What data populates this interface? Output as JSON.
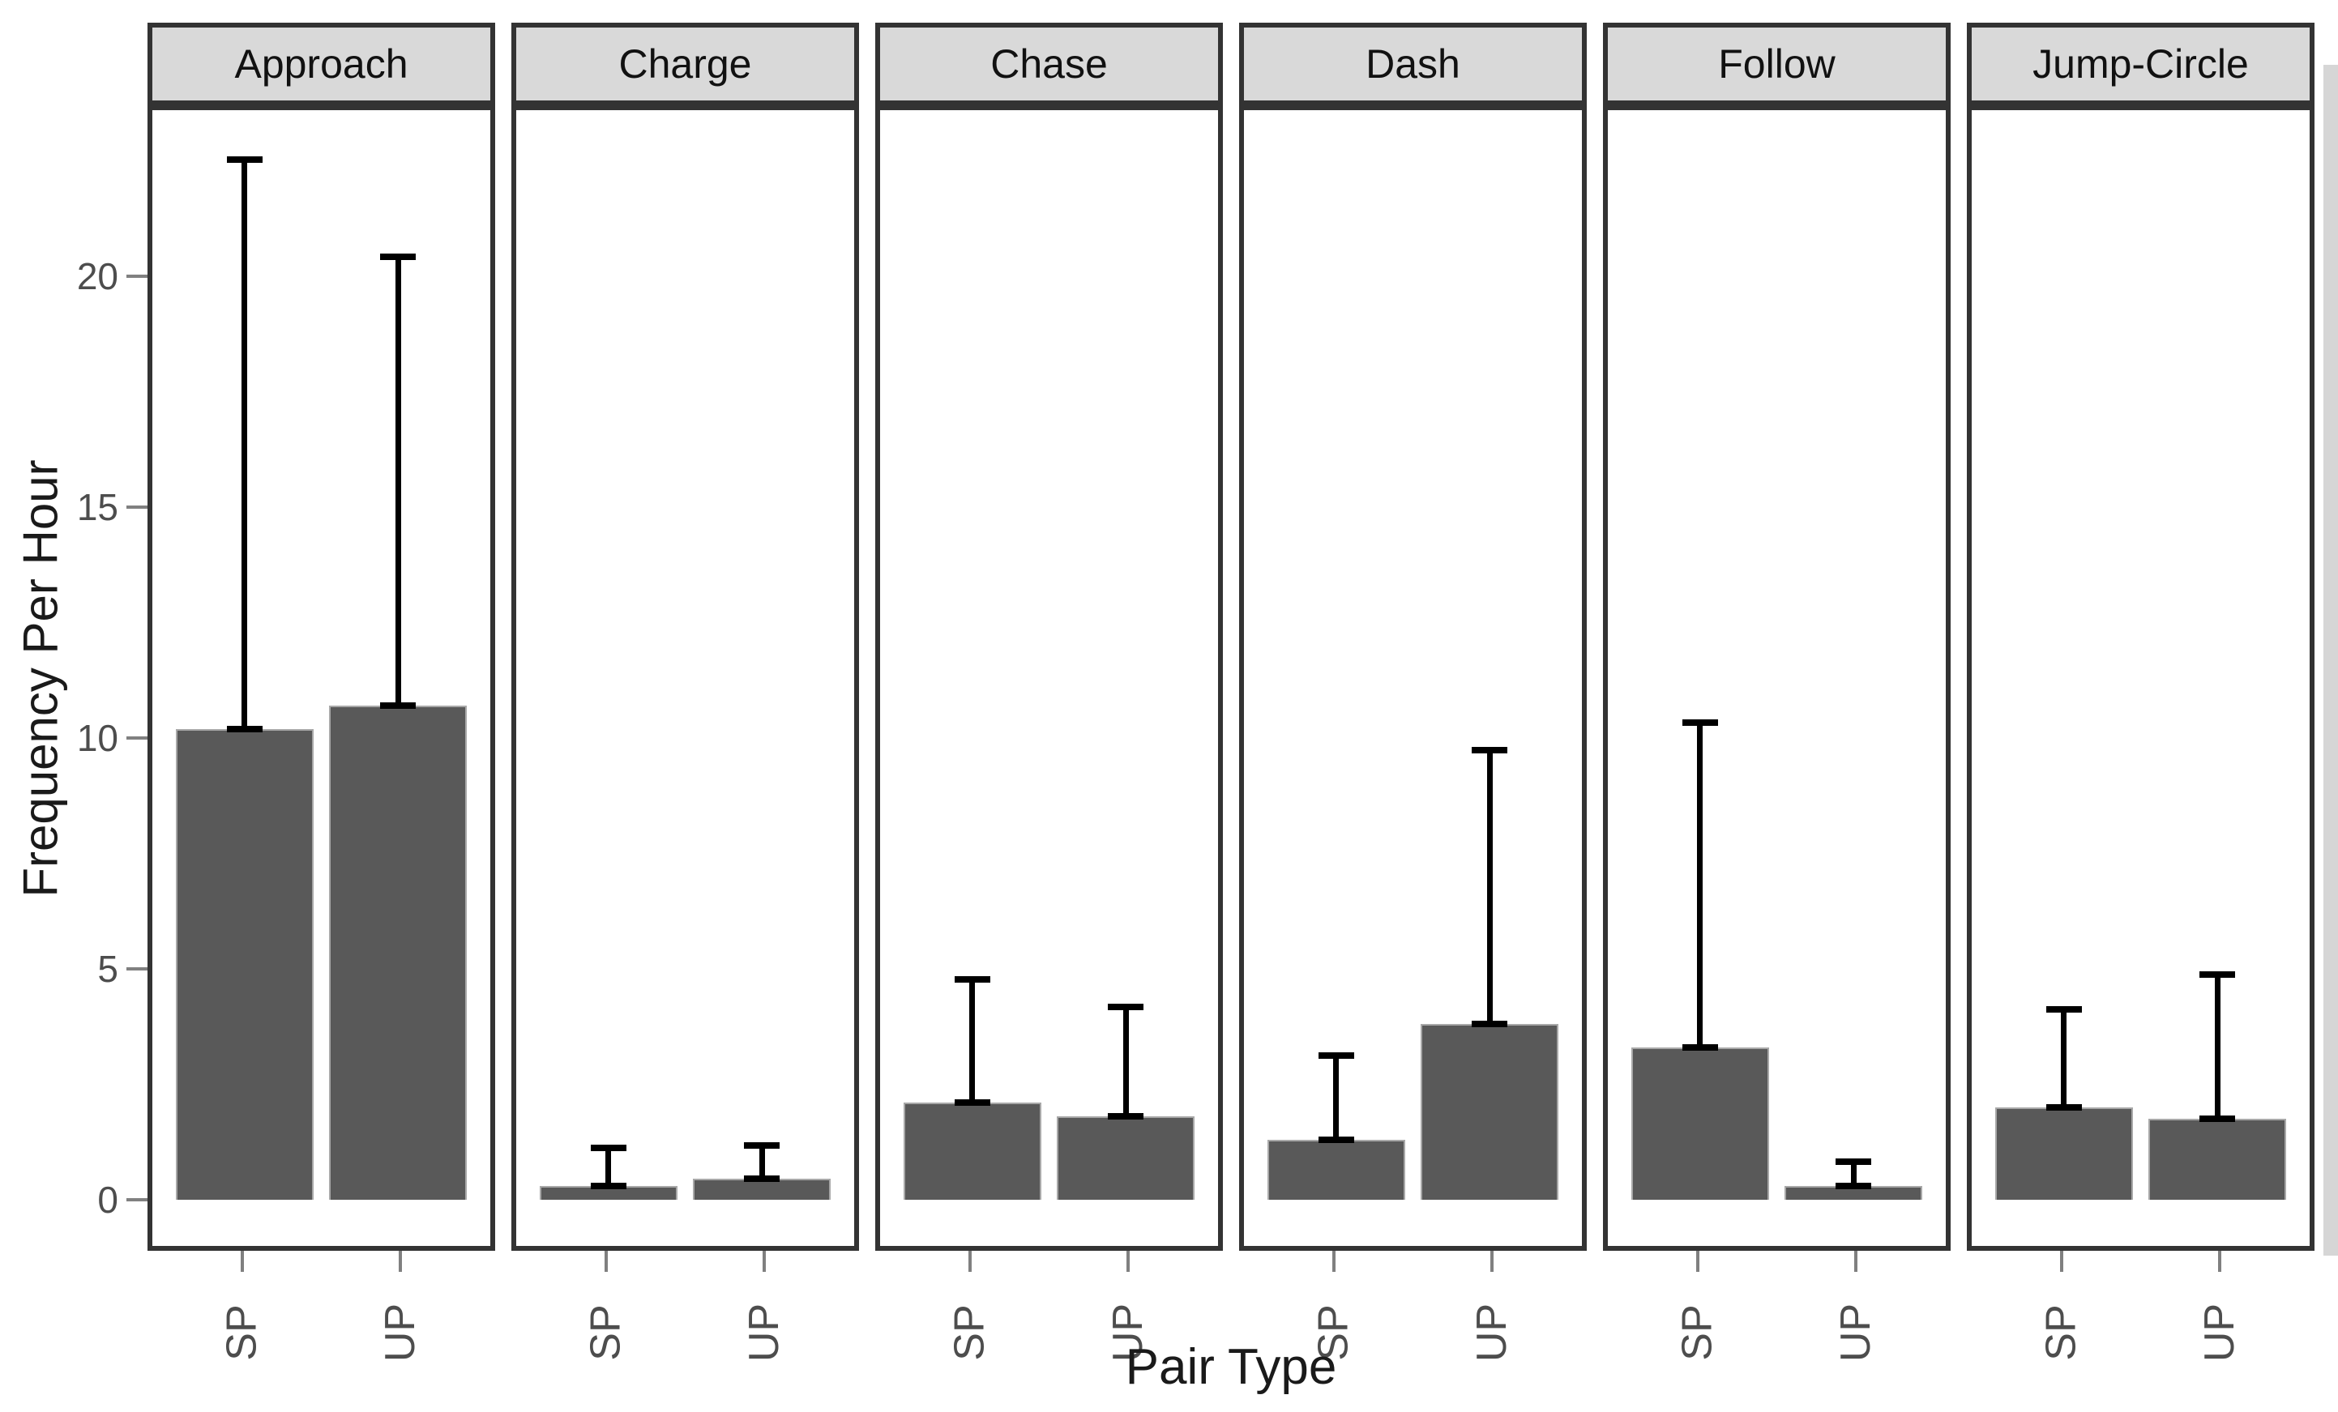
{
  "chart_data": {
    "type": "bar",
    "title": "",
    "ylabel": "Frequency Per Hour",
    "xlabel": "Pair Type",
    "categories": [
      "SP",
      "UP"
    ],
    "y_ticks": [
      0,
      5,
      10,
      15,
      20
    ],
    "ylim": [
      0,
      23.7
    ],
    "grid": false,
    "legend": "none",
    "error_bars": "upper whiskers with caps, lower cap drawn at bar mean",
    "facets": [
      {
        "label": "Approach",
        "bars": [
          {
            "category": "SP",
            "mean": 10.2,
            "error_top": 22.6
          },
          {
            "category": "UP",
            "mean": 10.7,
            "error_top": 20.5
          }
        ]
      },
      {
        "label": "Charge",
        "bars": [
          {
            "category": "SP",
            "mean": 0.3,
            "error_top": 1.2
          },
          {
            "category": "UP",
            "mean": 0.45,
            "error_top": 1.25
          }
        ]
      },
      {
        "label": "Chase",
        "bars": [
          {
            "category": "SP",
            "mean": 2.1,
            "error_top": 4.85
          },
          {
            "category": "UP",
            "mean": 1.8,
            "error_top": 4.25
          }
        ]
      },
      {
        "label": "Dash",
        "bars": [
          {
            "category": "SP",
            "mean": 1.3,
            "error_top": 3.2
          },
          {
            "category": "UP",
            "mean": 3.8,
            "error_top": 9.8
          }
        ]
      },
      {
        "label": "Follow",
        "bars": [
          {
            "category": "SP",
            "mean": 3.3,
            "error_top": 10.4
          },
          {
            "category": "UP",
            "mean": 0.3,
            "error_top": 0.9
          }
        ]
      },
      {
        "label": "Jump-Circle",
        "bars": [
          {
            "category": "SP",
            "mean": 2.0,
            "error_top": 4.2
          },
          {
            "category": "UP",
            "mean": 1.75,
            "error_top": 4.95
          }
        ]
      }
    ],
    "colors": {
      "bar_fill": "#595959",
      "bar_edge": "#a8a8a8",
      "error_bar": "#000000",
      "strip_fill": "#d9d9d9",
      "panel_border": "#333333",
      "tick_mark": "#808080",
      "tick_label": "#4d4d4d",
      "axis_text": "#1a1a1a"
    }
  }
}
